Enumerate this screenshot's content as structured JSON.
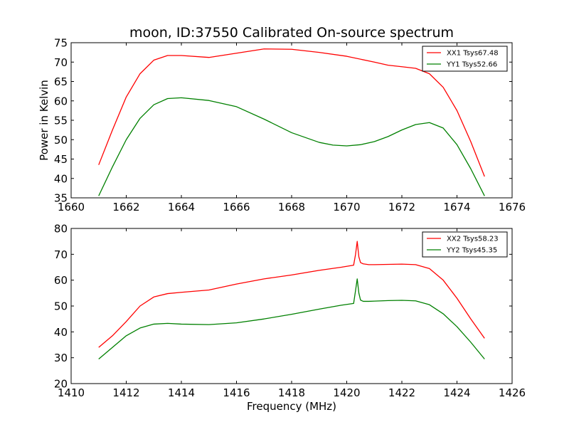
{
  "figure": {
    "title": "moon, ID:37550 Calibrated On-source spectrum"
  },
  "chart_data": [
    {
      "type": "line",
      "title": "moon, ID:37550 Calibrated On-source spectrum",
      "xlabel": "",
      "ylabel": "Power in Kelvin",
      "xlim": [
        1660,
        1676
      ],
      "ylim": [
        35,
        75
      ],
      "xticks": [
        1660,
        1662,
        1664,
        1666,
        1668,
        1670,
        1672,
        1674,
        1676
      ],
      "yticks": [
        35,
        40,
        45,
        50,
        55,
        60,
        65,
        70,
        75
      ],
      "grid": false,
      "legend": "top-right",
      "series": [
        {
          "name": "XX1 Tsys67.48",
          "color": "#ff0000",
          "x": [
            1661.0,
            1661.5,
            1662.0,
            1662.5,
            1663.0,
            1663.5,
            1664.0,
            1665.0,
            1666.0,
            1667.0,
            1668.0,
            1669.0,
            1670.0,
            1671.0,
            1671.5,
            1672.0,
            1672.5,
            1673.0,
            1673.5,
            1674.0,
            1674.5,
            1675.0
          ],
          "y": [
            43.5,
            52.5,
            61.0,
            67.0,
            70.5,
            71.7,
            71.7,
            71.2,
            72.3,
            73.4,
            73.3,
            72.5,
            71.5,
            70.0,
            69.2,
            68.8,
            68.4,
            67.0,
            63.5,
            57.5,
            49.5,
            40.5
          ]
        },
        {
          "name": "YY1 Tsys52.66",
          "color": "#008000",
          "x": [
            1661.0,
            1661.5,
            1662.0,
            1662.5,
            1663.0,
            1663.5,
            1664.0,
            1665.0,
            1666.0,
            1667.0,
            1668.0,
            1669.0,
            1669.5,
            1670.0,
            1670.5,
            1671.0,
            1671.5,
            1672.0,
            1672.5,
            1673.0,
            1673.5,
            1674.0,
            1674.5,
            1675.0
          ],
          "y": [
            35.5,
            43.0,
            50.0,
            55.5,
            59.0,
            60.6,
            60.8,
            60.1,
            58.5,
            55.3,
            51.8,
            49.3,
            48.6,
            48.4,
            48.7,
            49.5,
            50.8,
            52.5,
            53.9,
            54.4,
            53.0,
            48.7,
            42.5,
            35.5
          ]
        }
      ]
    },
    {
      "type": "line",
      "title": "",
      "xlabel": "Frequency (MHz)",
      "ylabel": "",
      "xlim": [
        1410,
        1426
      ],
      "ylim": [
        20,
        80
      ],
      "xticks": [
        1410,
        1412,
        1414,
        1416,
        1418,
        1420,
        1422,
        1424,
        1426
      ],
      "yticks": [
        20,
        30,
        40,
        50,
        60,
        70,
        80
      ],
      "grid": false,
      "legend": "top-right",
      "series": [
        {
          "name": "XX2 Tsys58.23",
          "color": "#ff0000",
          "x": [
            1411.0,
            1411.5,
            1412.0,
            1412.5,
            1413.0,
            1413.5,
            1414.0,
            1415.0,
            1416.0,
            1417.0,
            1418.0,
            1419.0,
            1419.8,
            1420.25,
            1420.32,
            1420.38,
            1420.44,
            1420.5,
            1420.6,
            1420.8,
            1421.0,
            1421.5,
            1422.0,
            1422.5,
            1423.0,
            1423.5,
            1424.0,
            1424.5,
            1425.0
          ],
          "y": [
            34.0,
            38.5,
            44.0,
            50.0,
            53.5,
            54.8,
            55.3,
            56.2,
            58.5,
            60.5,
            62.0,
            63.8,
            65.0,
            65.8,
            70.0,
            75.0,
            69.0,
            66.8,
            66.3,
            66.0,
            66.0,
            66.1,
            66.2,
            66.0,
            64.5,
            60.0,
            53.0,
            45.0,
            37.5
          ]
        },
        {
          "name": "YY2 Tsys45.35",
          "color": "#008000",
          "x": [
            1411.0,
            1411.5,
            1412.0,
            1412.5,
            1413.0,
            1413.5,
            1414.0,
            1415.0,
            1416.0,
            1417.0,
            1418.0,
            1419.0,
            1419.8,
            1420.25,
            1420.32,
            1420.38,
            1420.44,
            1420.5,
            1420.6,
            1420.8,
            1421.0,
            1421.5,
            1422.0,
            1422.5,
            1423.0,
            1423.5,
            1424.0,
            1424.5,
            1425.0
          ],
          "y": [
            29.5,
            34.0,
            38.5,
            41.5,
            43.0,
            43.3,
            43.0,
            42.8,
            43.5,
            45.0,
            46.8,
            48.8,
            50.3,
            51.0,
            56.0,
            60.5,
            55.0,
            52.3,
            51.8,
            51.8,
            51.9,
            52.1,
            52.2,
            52.0,
            50.5,
            47.0,
            42.0,
            36.0,
            29.5
          ]
        }
      ]
    }
  ]
}
